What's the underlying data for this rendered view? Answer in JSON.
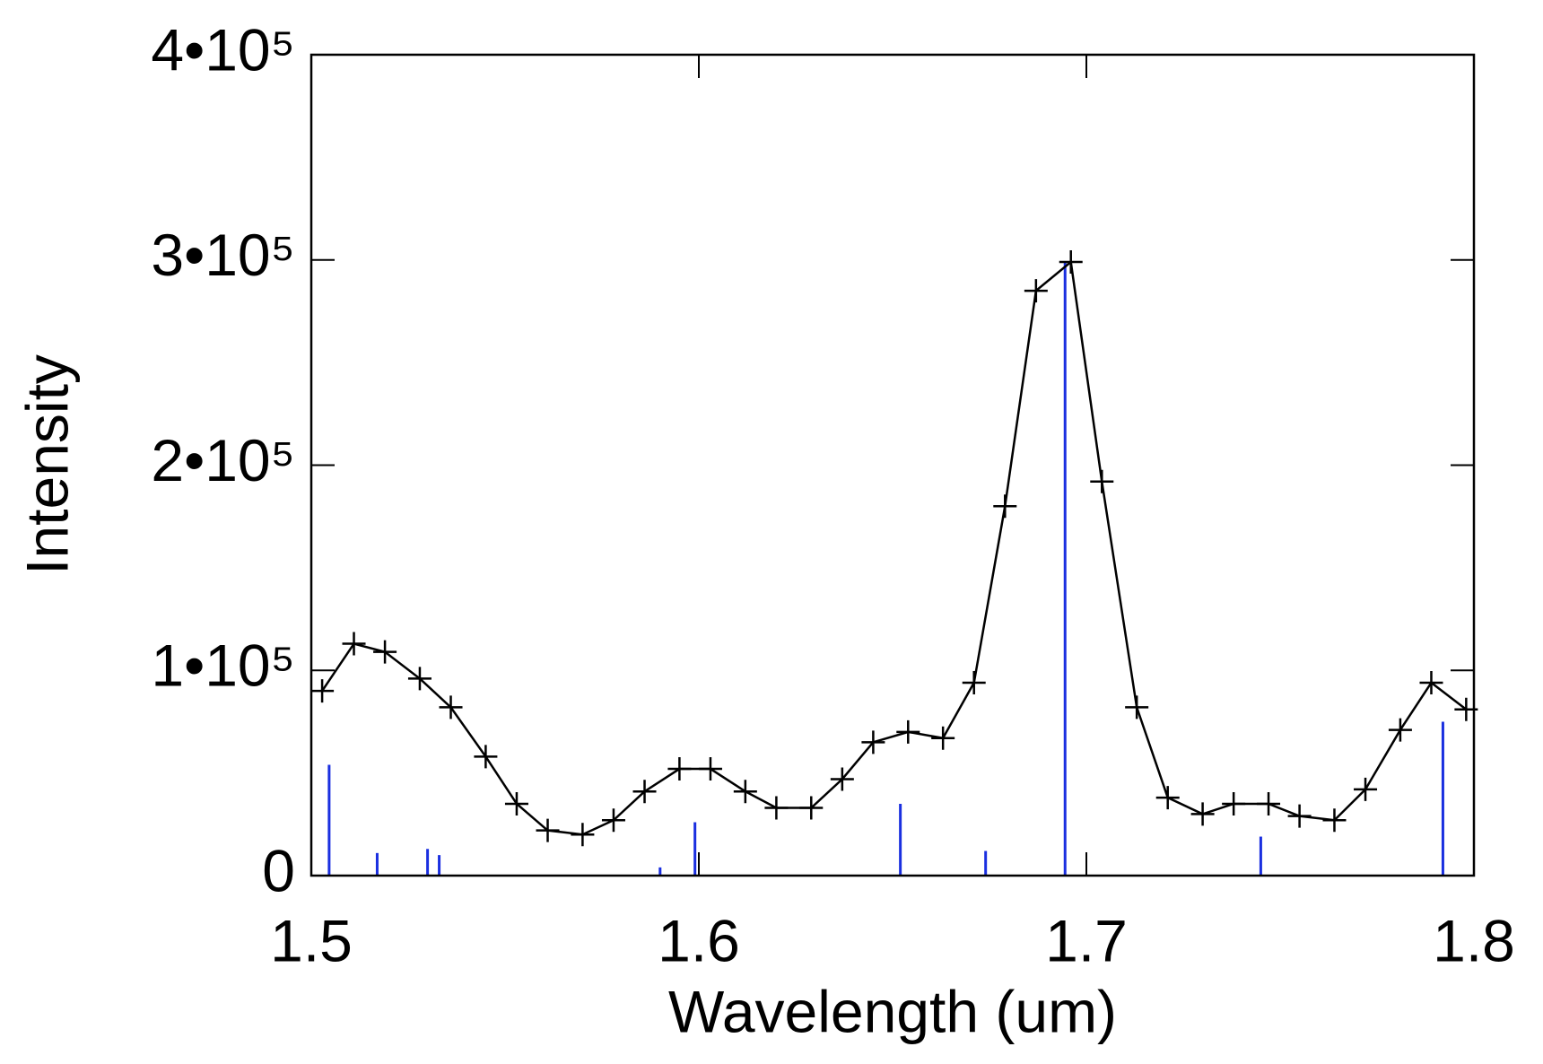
{
  "chart_data": {
    "type": "line",
    "xlabel": "Wavelength (um)",
    "ylabel": "Intensity",
    "xlim": [
      1.5,
      1.8
    ],
    "xticks": [
      1.5,
      1.6,
      1.7,
      1.8
    ],
    "ylim": [
      0,
      400000
    ],
    "yticks": [
      0,
      {
        "value": 100000,
        "label": "1•10⁵"
      },
      {
        "value": 200000,
        "label": "2•10⁵"
      },
      {
        "value": 300000,
        "label": "3•10⁵"
      },
      {
        "value": 400000,
        "label": "4•10⁵"
      }
    ],
    "grid": false,
    "series": [
      {
        "type": "line",
        "color": "#000000",
        "marker": "plus",
        "x": [
          1.5028,
          1.511,
          1.519,
          1.528,
          1.536,
          1.545,
          1.553,
          1.561,
          1.57,
          1.578,
          1.586,
          1.595,
          1.603,
          1.612,
          1.62,
          1.629,
          1.637,
          1.645,
          1.654,
          1.663,
          1.671,
          1.679,
          1.687,
          1.696,
          1.704,
          1.713,
          1.721,
          1.73,
          1.738,
          1.747,
          1.755,
          1.764,
          1.772,
          1.781,
          1.789,
          1.798
        ],
        "values": [
          90000,
          113000,
          109000,
          96000,
          82000,
          58000,
          35000,
          22000,
          20000,
          27000,
          41000,
          52000,
          52000,
          41000,
          33000,
          33000,
          47000,
          65000,
          70000,
          67000,
          94000,
          180000,
          285000,
          299000,
          192000,
          82000,
          38000,
          30000,
          35000,
          35000,
          29000,
          27000,
          42000,
          71000,
          94000,
          81000
        ]
      },
      {
        "type": "stem",
        "color": "#1a2fe0",
        "x": [
          1.5046,
          1.517,
          1.53,
          1.533,
          1.59,
          1.599,
          1.652,
          1.674,
          1.6945,
          1.745,
          1.792
        ],
        "values": [
          54000,
          11000,
          13000,
          10000,
          4000,
          26000,
          35000,
          12000,
          299000,
          19000,
          75000
        ]
      }
    ]
  }
}
